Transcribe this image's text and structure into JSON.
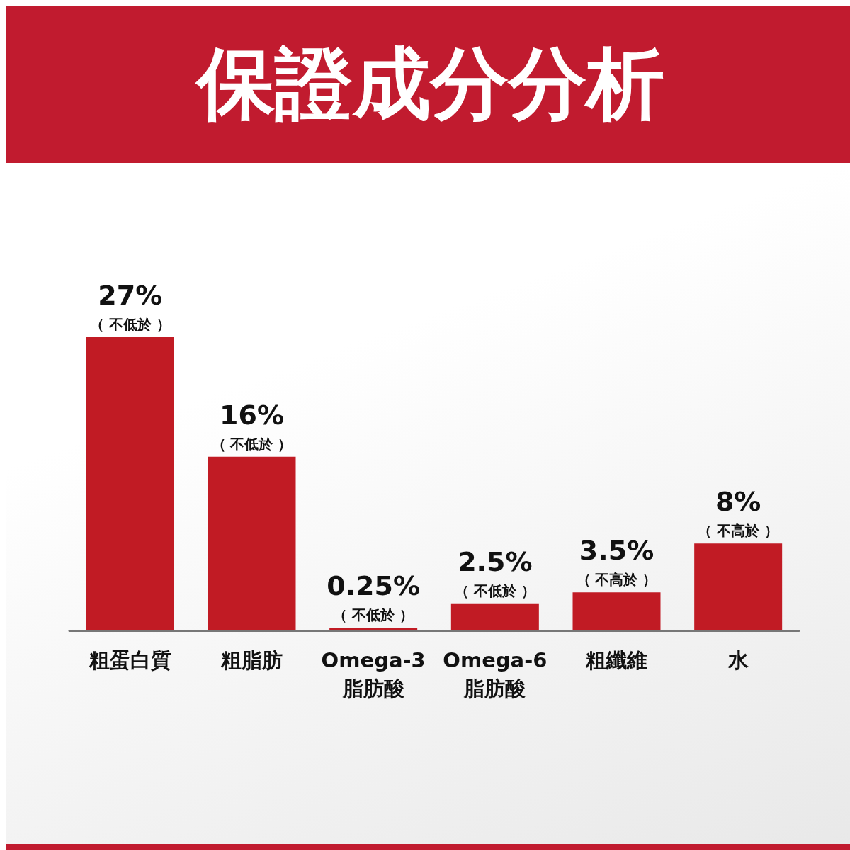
{
  "chart_data": {
    "type": "bar",
    "title": "保證成分分析",
    "categories": [
      "粗蛋白質",
      "粗脂肪",
      "Omega-3\n脂肪酸",
      "Omega-6\n脂肪酸",
      "粗纖維",
      "水"
    ],
    "values": [
      27,
      16,
      0.25,
      2.5,
      3.5,
      8
    ],
    "color": "#c11b24",
    "value_labels": [
      "27%",
      "16%",
      "0.25%",
      "2.5%",
      "3.5%",
      "8%"
    ],
    "annotations": [
      {
        "text": "（ 不低於 ）",
        "x": "粗蛋白質",
        "y": 27
      },
      {
        "text": "（ 不低於 ）",
        "x": "粗脂肪",
        "y": 16
      },
      {
        "text": "（ 不低於 ）",
        "x": "Omega-3\n脂肪酸",
        "y": 0.25
      },
      {
        "text": "（ 不低於 ）",
        "x": "Omega-6\n脂肪酸",
        "y": 2.5
      },
      {
        "text": "（ 不高於 ）",
        "x": "粗纖維",
        "y": 3.5
      },
      {
        "text": "（ 不高於 ）",
        "x": "水",
        "y": 8
      }
    ]
  }
}
